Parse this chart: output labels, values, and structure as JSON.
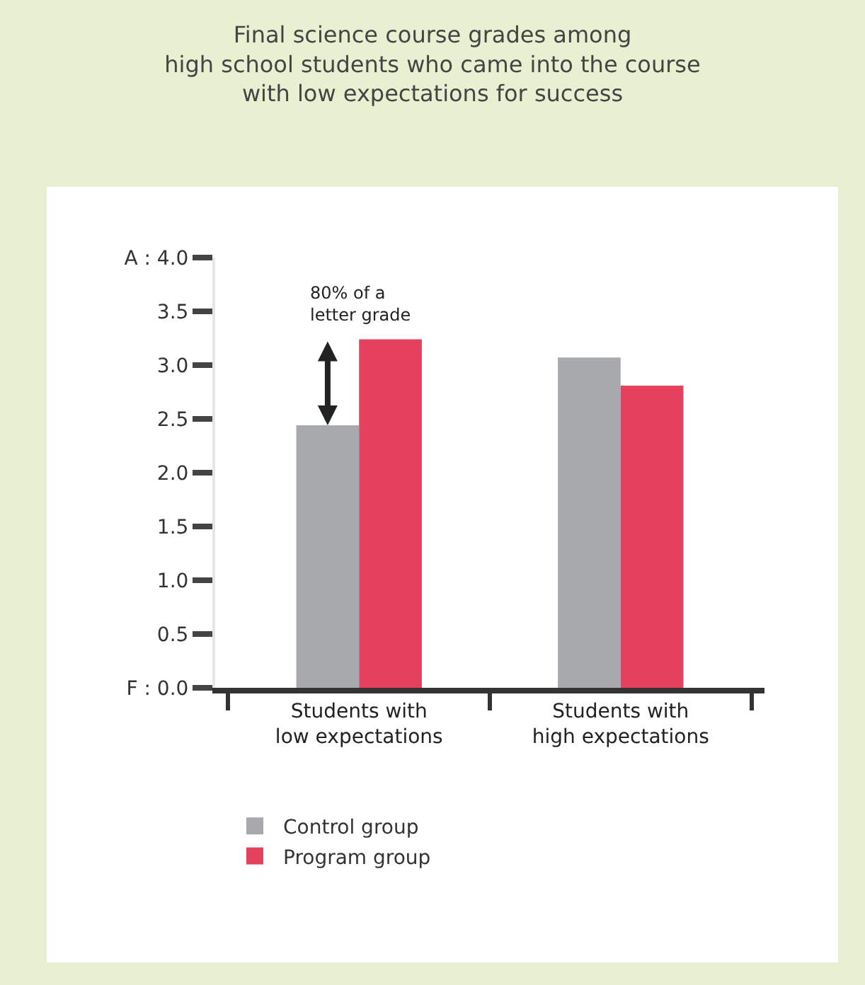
{
  "chart_data": {
    "type": "bar",
    "title": "Final science course grades among\nhigh school students who came into the course\nwith low expectations for success",
    "categories": [
      "Students with\nlow expectations",
      "Students with\nhigh expectations"
    ],
    "series": [
      {
        "name": "Control group",
        "color": "#a8a9ad",
        "values": [
          2.44,
          3.07
        ]
      },
      {
        "name": "Program group",
        "color": "#e5405e",
        "values": [
          3.24,
          2.81
        ]
      }
    ],
    "ylim": [
      0,
      4.0
    ],
    "yticks": [
      {
        "value": 0,
        "label": "F : 0.0"
      },
      0.5,
      {
        "value": 1,
        "label": "1.0"
      },
      1.5,
      {
        "value": 2,
        "label": "2.0"
      },
      2.5,
      {
        "value": 3,
        "label": "3.0"
      },
      3.5,
      {
        "value": 4,
        "label": "A : 4.0"
      }
    ],
    "annotations": [
      {
        "text": "80% of a\nletter grade",
        "x": "Students with\nlow expectations",
        "y": 3.24
      }
    ],
    "legend": "bottom left"
  }
}
